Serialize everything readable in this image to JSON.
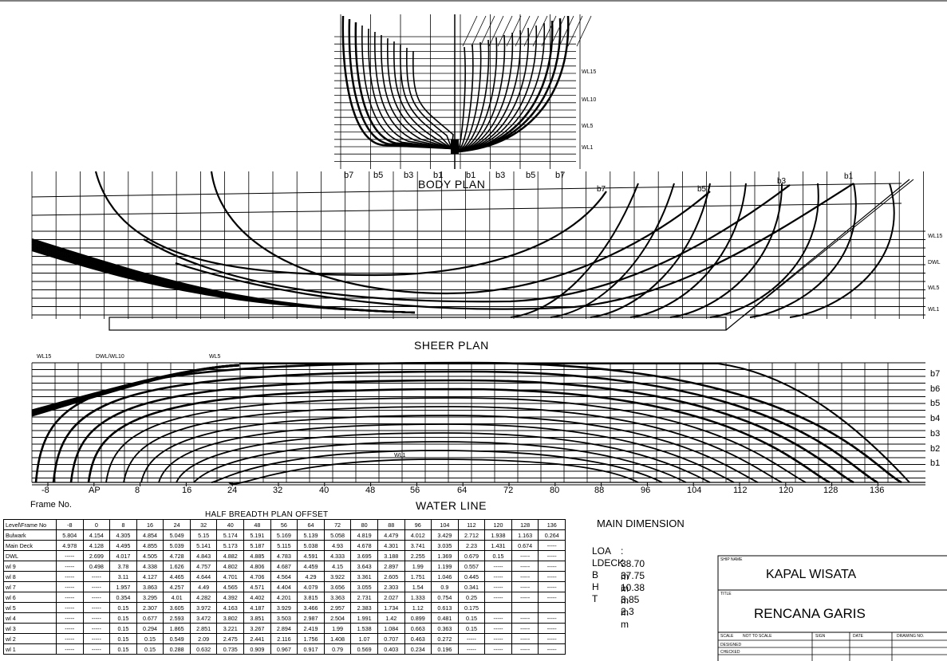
{
  "body_plan": {
    "title": "BODY PLAN",
    "buttock_labels": [
      "b7",
      "b5",
      "b3",
      "b1",
      "b1",
      "b3",
      "b5",
      "b7"
    ],
    "waterline_labels": [
      "WL15",
      "WL10",
      "WL5",
      "WL1"
    ]
  },
  "sheer_plan": {
    "title": "SHEER PLAN",
    "buttock_labels": [
      "b7",
      "b5",
      "b3",
      "b1"
    ],
    "waterline_labels": [
      "WL15",
      "DWL",
      "WL5",
      "WL1"
    ]
  },
  "water_line": {
    "title": "WATER LINE",
    "waterline_labels": [
      "WL15",
      "DWL/WL10",
      "WL5",
      "WL1"
    ],
    "buttock_labels": [
      "b7",
      "b6",
      "b5",
      "b4",
      "b3",
      "b2",
      "b1"
    ],
    "frame_axis_label": "Frame No.",
    "frame_numbers": [
      "-8",
      "AP",
      "8",
      "16",
      "24",
      "32",
      "40",
      "48",
      "56",
      "64",
      "72",
      "80",
      "88",
      "96",
      "104",
      "112",
      "120",
      "128",
      "136"
    ]
  },
  "offset_table": {
    "title": "HALF BREADTH PLAN OFFSET",
    "columns": [
      "Level\\Frame No",
      "-8",
      "0",
      "8",
      "16",
      "24",
      "32",
      "40",
      "48",
      "56",
      "64",
      "72",
      "80",
      "88",
      "96",
      "104",
      "112",
      "120",
      "128",
      "136"
    ],
    "rows": [
      [
        "Bulwark",
        "5.804",
        "4.154",
        "4.305",
        "4.854",
        "5.049",
        "5.15",
        "5.174",
        "5.191",
        "5.169",
        "5.139",
        "5.058",
        "4.819",
        "4.479",
        "4.012",
        "3.429",
        "2.712",
        "1.938",
        "1.163",
        "0.264"
      ],
      [
        "Main Deck",
        "4.978",
        "4.128",
        "4.495",
        "4.855",
        "5.039",
        "5.141",
        "5.173",
        "5.187",
        "5.115",
        "5.038",
        "4.93",
        "4.678",
        "4.301",
        "3.741",
        "3.035",
        "2.23",
        "1.431",
        "0.674",
        "-----"
      ],
      [
        "DWL",
        "-----",
        "2.699",
        "4.017",
        "4.505",
        "4.728",
        "4.843",
        "4.882",
        "4.885",
        "4.783",
        "4.591",
        "4.333",
        "3.695",
        "3.188",
        "2.255",
        "1.369",
        "0.679",
        "0.15",
        "-----",
        "-----"
      ],
      [
        "wl 9",
        "-----",
        "0.498",
        "3.78",
        "4.338",
        "1.626",
        "4.757",
        "4.802",
        "4.806",
        "4.687",
        "4.459",
        "4.15",
        "3.643",
        "2.897",
        "1.99",
        "1.199",
        "0.557",
        "-----",
        "-----",
        "-----"
      ],
      [
        "wl 8",
        "-----",
        "-----",
        "3.11",
        "4.127",
        "4.465",
        "4.644",
        "4.701",
        "4.706",
        "4.564",
        "4.29",
        "3.922",
        "3.361",
        "2.605",
        "1.751",
        "1.046",
        "0.445",
        "-----",
        "-----",
        "-----"
      ],
      [
        "wl 7",
        "-----",
        "-----",
        "1.957",
        "3.863",
        "4.257",
        "4.49",
        "4.565",
        "4.571",
        "4.404",
        "4.079",
        "3.656",
        "3.055",
        "2.303",
        "1.54",
        "0.9",
        "0.341",
        "-----",
        "-----",
        "-----"
      ],
      [
        "wl 6",
        "-----",
        "-----",
        "0.354",
        "3.295",
        "4.01",
        "4.282",
        "4.392",
        "4.402",
        "4.201",
        "3.815",
        "3.363",
        "2.731",
        "2.027",
        "1.333",
        "0.754",
        "0.25",
        "-----",
        "-----",
        "-----"
      ],
      [
        "wl 5",
        "-----",
        "-----",
        "0.15",
        "2.307",
        "3.605",
        "3.972",
        "4.163",
        "4.187",
        "3.929",
        "3.466",
        "2.957",
        "2.383",
        "1.734",
        "1.12",
        "0.613",
        "0.175",
        "",
        "",
        ""
      ],
      [
        "wl 4",
        "-----",
        "-----",
        "0.15",
        "0.677",
        "2.593",
        "3.472",
        "3.802",
        "3.851",
        "3.503",
        "2.987",
        "2.504",
        "1.991",
        "1.42",
        "0.899",
        "0.481",
        "0.15",
        "-----",
        "-----",
        "-----"
      ],
      [
        "wl 3",
        "-----",
        "-----",
        "0.15",
        "0.294",
        "1.865",
        "2.851",
        "3.221",
        "3.267",
        "2.894",
        "2.419",
        "1.99",
        "1.538",
        "1.084",
        "0.663",
        "0.363",
        "0.15",
        "-----",
        "-----",
        "-----"
      ],
      [
        "wl 2",
        "-----",
        "-----",
        "0.15",
        "0.15",
        "0.549",
        "2.09",
        "2.475",
        "2.441",
        "2.116",
        "1.756",
        "1.408",
        "1.07",
        "0.707",
        "0.463",
        "0.272",
        "-----",
        "-----",
        "-----",
        "-----"
      ],
      [
        "wl 1",
        "-----",
        "-----",
        "0.15",
        "0.15",
        "0.288",
        "0.632",
        "0.735",
        "0.909",
        "0.967",
        "0.917",
        "0.79",
        "0.569",
        "0.403",
        "0.234",
        "0.196",
        "-----",
        "-----",
        "-----",
        "-----"
      ]
    ]
  },
  "main_dimension": {
    "title": "MAIN DIMENSION",
    "items": [
      {
        "label": "LOA",
        "value": ": 38.70 m"
      },
      {
        "label": "LDECK",
        "value": ": 37.75 m"
      },
      {
        "label": "B",
        "value": ": 10.38 m"
      },
      {
        "label": "H",
        "value": ": 3.85 m"
      },
      {
        "label": "T",
        "value": ": 2.3 m"
      }
    ]
  },
  "title_block": {
    "ship_name_label": "SHIP NAME",
    "ship_name": "KAPAL WISATA",
    "title_label": "TITLE",
    "title": "RENCANA GARIS",
    "scale_label": "SCALE",
    "scale_value": "NOT TO SCALE",
    "sign_label": "SIGN",
    "date_label": "DATE",
    "drawing_no_label": "DRAWING NO.",
    "designed_label": "DESIGNED",
    "checked_label": "CHECKED"
  }
}
